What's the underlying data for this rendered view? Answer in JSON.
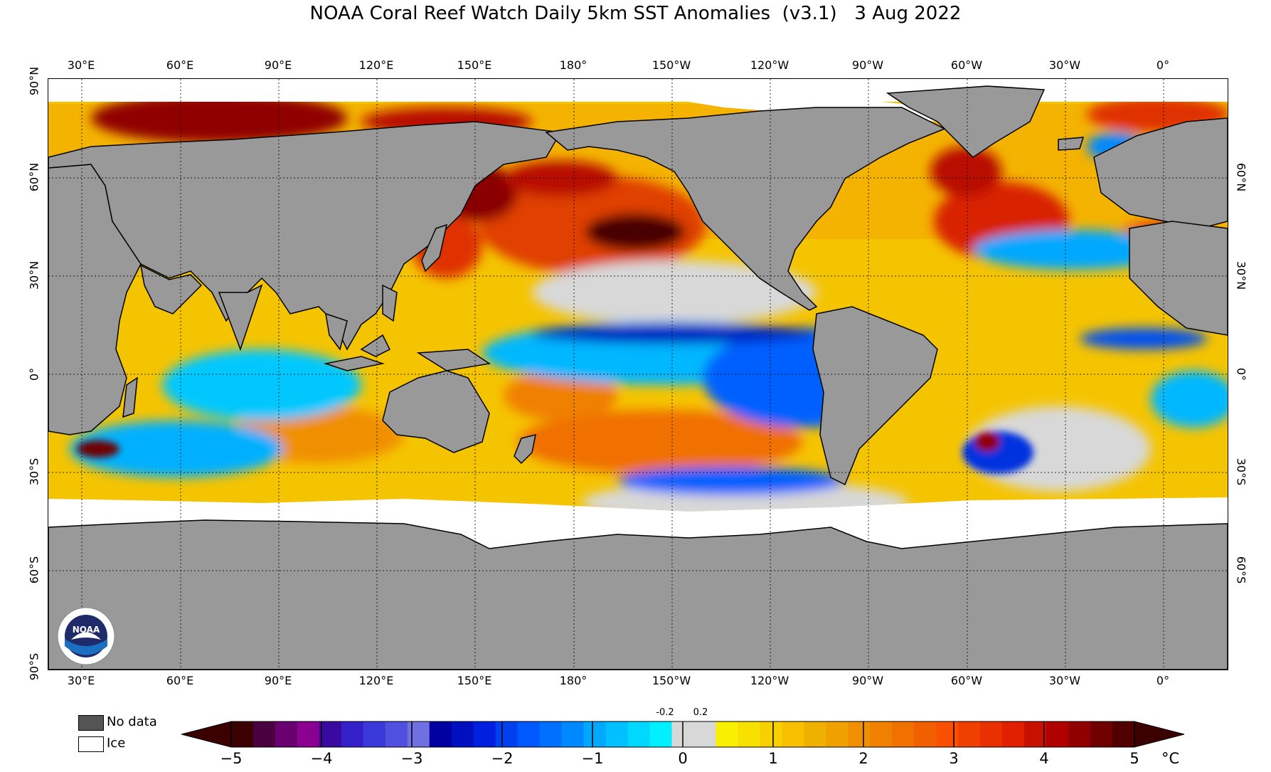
{
  "title": "NOAA Coral Reef Watch Daily 5km SST Anomalies  (v3.1)   3 Aug 2022",
  "map": {
    "lon_labels": [
      "30°E",
      "60°E",
      "90°E",
      "120°E",
      "150°E",
      "180°",
      "150°W",
      "120°W",
      "90°W",
      "60°W",
      "30°W",
      "0°"
    ],
    "lat_labels_left": [
      "90°N",
      "60°N",
      "30°N",
      "0°",
      "30°S",
      "60°S",
      "90°S"
    ],
    "lat_labels_right": [
      "60°N",
      "30°N",
      "0°",
      "30°S",
      "60°S"
    ],
    "colors": {
      "land": "#999999",
      "ice": "#ffffff",
      "no_data": "#555555",
      "neutral_ocean": "#f5c400"
    }
  },
  "legend": {
    "no_data_label": "No data",
    "ice_label": "Ice"
  },
  "colorbar": {
    "ticks": [
      "−5",
      "−4",
      "−3",
      "−2",
      "−1",
      "0",
      "1",
      "2",
      "3",
      "4",
      "5"
    ],
    "small_labels": [
      "-0.2",
      "0.2"
    ],
    "unit": "°C",
    "min": -5,
    "max": 5,
    "colors": [
      "#3b0000",
      "#4a0040",
      "#6a0070",
      "#8a0090",
      "#3a0aa0",
      "#3320c8",
      "#3a3ad8",
      "#5050e0",
      "#7070e0",
      "#0000a0",
      "#0010c0",
      "#0020e0",
      "#0040f0",
      "#0058ff",
      "#0070ff",
      "#0088ff",
      "#00a8ff",
      "#00c0ff",
      "#00d8ff",
      "#00f0ff",
      "#d8d8d8",
      "#d8d8d8",
      "#f8f000",
      "#f8e000",
      "#f8d000",
      "#f8c000",
      "#f0b000",
      "#f0a000",
      "#f09000",
      "#f08000",
      "#f07000",
      "#f06000",
      "#f85000",
      "#f04000",
      "#e83000",
      "#e02000",
      "#c81000",
      "#b00000",
      "#900000",
      "#700000",
      "#500000"
    ],
    "logo_text": "NOAA"
  }
}
